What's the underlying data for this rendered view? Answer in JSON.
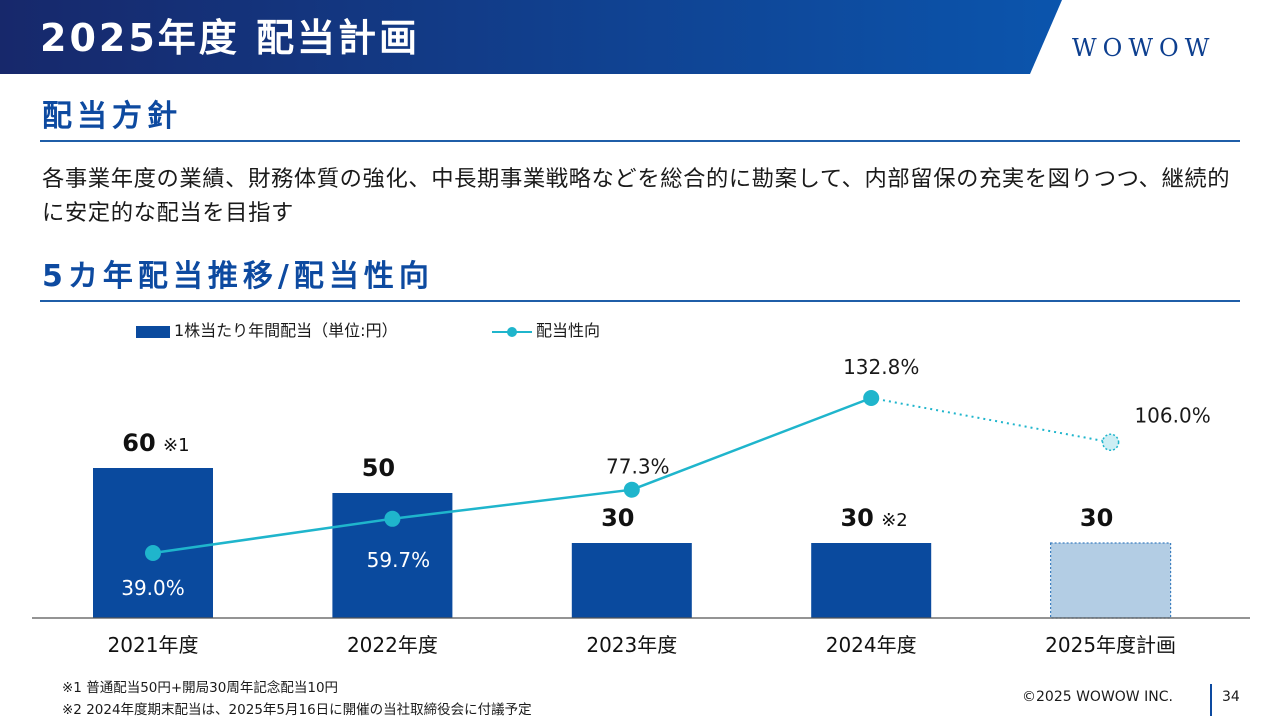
{
  "header": {
    "title": "2025年度 配当計画",
    "logo_text": "WOWOW",
    "band_color": "#0d3f8f"
  },
  "policy": {
    "heading": "配当方針",
    "text": "各事業年度の業績、財務体質の強化、中長期事業戦略などを総合的に勘案して、内部留保の充実を図りつつ、継続的に安定的な配当を目指す"
  },
  "trend": {
    "heading": "5カ年配当推移/配当性向"
  },
  "legend": {
    "bar_label": "1株当たり年間配当（単位:円）",
    "line_label": "配当性向"
  },
  "chart_data": {
    "type": "bar",
    "categories": [
      "2021年度",
      "2022年度",
      "2023年度",
      "2024年度",
      "2025年度計画"
    ],
    "series": [
      {
        "name": "1株当たり年間配当（単位:円）",
        "type": "bar",
        "values": [
          60,
          50,
          30,
          30,
          30
        ],
        "labels": [
          "60",
          "50",
          "30",
          "30",
          "30"
        ],
        "notes": [
          "※1",
          "",
          "",
          "※2",
          ""
        ],
        "planned": [
          false,
          false,
          false,
          false,
          true
        ],
        "color": "#0a4a9e",
        "planned_color": "#b3cde4"
      },
      {
        "name": "配当性向",
        "type": "line",
        "values": [
          39.0,
          59.7,
          77.3,
          132.8,
          106.0
        ],
        "labels": [
          "39.0%",
          "59.7%",
          "77.3%",
          "132.8%",
          "106.0%"
        ],
        "planned": [
          false,
          false,
          false,
          false,
          true
        ],
        "color": "#1fb5cc",
        "planned_color": "#cdeef4"
      }
    ],
    "ylim": [
      0,
      70
    ],
    "y2lim": [
      0,
      160
    ],
    "grid": false,
    "legend_position": "top-left"
  },
  "footnotes": [
    "※1 普通配当50円+開局30周年記念配当10円",
    "※2 2024年度期末配当は、2025年5月16日に開催の当社取締役会に付議予定"
  ],
  "footer": {
    "copyright": "©2025 WOWOW INC.",
    "page_number": "34"
  }
}
